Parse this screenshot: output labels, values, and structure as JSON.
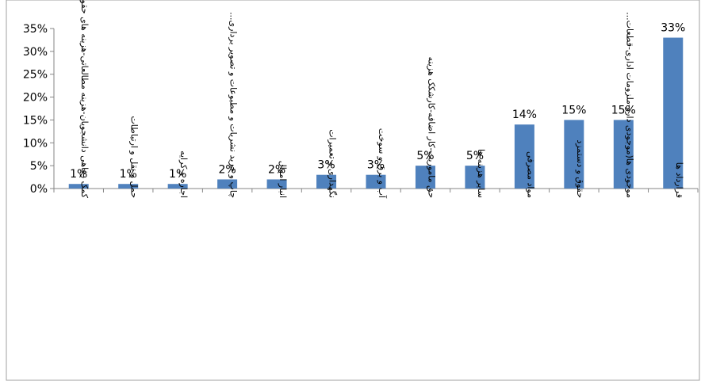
{
  "chart_data": {
    "type": "bar",
    "title": "",
    "xlabel": "",
    "ylabel": "",
    "ylim": [
      0,
      35
    ],
    "y_ticks": [
      "0%",
      "5%",
      "10%",
      "15%",
      "20%",
      "25%",
      "30%",
      "35%"
    ],
    "grid": false,
    "legend": "none",
    "bar_color": "#4f81bd",
    "axis_color": "#868686",
    "categories": [
      "کمک رفاهی دانشجویان-هزینه مطالعاتی-هزینه های حقوقی...",
      "حمل و نقل و ارتباطات",
      "اجاره و کرایه",
      "چاپ و خرید نشریات و مطبوعات و تصویر برداری...",
      "انبار اموال",
      "نگهداری و تعمیرات",
      "آب و برق و سوخت",
      "حق ماموریت-کار اضافه-کارشکک هزینه",
      "سایر هزینه ها",
      "مواد مصرفی",
      "حقوق و دستمزد",
      "موجودی ها(موجودی دارو-ملزومات اداری-قطعات...",
      "قرارداد ها"
    ],
    "values": [
      1,
      1,
      1,
      2,
      2,
      3,
      3,
      5,
      5,
      14,
      15,
      15,
      33
    ],
    "data_labels": [
      "1%",
      "1%",
      "1%",
      "2%",
      "2%",
      "3%",
      "3%",
      "5%",
      "5%",
      "14%",
      "15%",
      "15%",
      "33%"
    ]
  }
}
